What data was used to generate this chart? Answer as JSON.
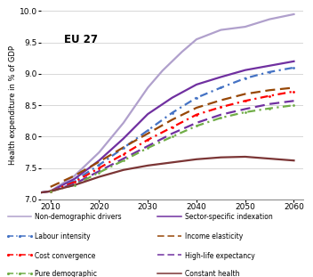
{
  "title": "EU 27",
  "ylabel": "Health expenditure in % of GDP",
  "xlim": [
    2008,
    2062
  ],
  "ylim": [
    7.0,
    10.0
  ],
  "xticks": [
    2010,
    2020,
    2030,
    2040,
    2050,
    2060
  ],
  "yticks": [
    7.0,
    7.5,
    8.0,
    8.5,
    9.0,
    9.5,
    10.0
  ],
  "series": [
    {
      "name": "Non-demographic drivers",
      "x": [
        2008,
        2010,
        2015,
        2020,
        2025,
        2030,
        2033,
        2037,
        2040,
        2045,
        2050,
        2055,
        2060
      ],
      "y": [
        7.11,
        7.13,
        7.38,
        7.75,
        8.22,
        8.78,
        9.05,
        9.35,
        9.55,
        9.7,
        9.75,
        9.87,
        9.95
      ],
      "color": "#b0a0cc",
      "lw": 1.6,
      "ls": "solid",
      "dot": false
    },
    {
      "name": "Sector-specific indexation",
      "x": [
        2008,
        2010,
        2015,
        2020,
        2025,
        2030,
        2035,
        2040,
        2045,
        2050,
        2055,
        2060
      ],
      "y": [
        7.11,
        7.13,
        7.33,
        7.62,
        7.97,
        8.36,
        8.62,
        8.83,
        8.95,
        9.06,
        9.13,
        9.2
      ],
      "color": "#7030a0",
      "lw": 1.6,
      "ls": "solid",
      "dot": false
    },
    {
      "name": "Labour intensity",
      "x": [
        2010,
        2015,
        2020,
        2025,
        2030,
        2035,
        2040,
        2045,
        2050,
        2055,
        2060
      ],
      "y": [
        7.13,
        7.3,
        7.55,
        7.82,
        8.1,
        8.38,
        8.62,
        8.78,
        8.93,
        9.03,
        9.1
      ],
      "color": "#4472c4",
      "lw": 1.6,
      "ls": "dashdot",
      "dot": true
    },
    {
      "name": "Income elasticity",
      "x": [
        2010,
        2015,
        2020,
        2025,
        2030,
        2035,
        2040,
        2045,
        2050,
        2055,
        2060
      ],
      "y": [
        7.2,
        7.38,
        7.6,
        7.83,
        8.05,
        8.27,
        8.46,
        8.58,
        8.68,
        8.74,
        8.78
      ],
      "color": "#974706",
      "lw": 1.6,
      "ls": "dashed",
      "dot": false
    },
    {
      "name": "Cost convergence",
      "x": [
        2010,
        2015,
        2020,
        2025,
        2030,
        2035,
        2040,
        2045,
        2050,
        2055,
        2060
      ],
      "y": [
        7.13,
        7.28,
        7.5,
        7.72,
        7.95,
        8.15,
        8.35,
        8.47,
        8.57,
        8.65,
        8.72
      ],
      "color": "#ff0000",
      "lw": 1.6,
      "ls": "dashdot",
      "dot": true
    },
    {
      "name": "High-life expectancy",
      "x": [
        2010,
        2015,
        2020,
        2025,
        2030,
        2035,
        2040,
        2045,
        2050,
        2055,
        2060
      ],
      "y": [
        7.13,
        7.25,
        7.45,
        7.65,
        7.85,
        8.05,
        8.22,
        8.35,
        8.44,
        8.52,
        8.57
      ],
      "color": "#7030a0",
      "lw": 1.6,
      "ls": "dashed",
      "dot": false
    },
    {
      "name": "Pure demographic",
      "x": [
        2010,
        2015,
        2020,
        2025,
        2030,
        2035,
        2040,
        2045,
        2050,
        2055,
        2060
      ],
      "y": [
        7.13,
        7.23,
        7.43,
        7.62,
        7.82,
        8.0,
        8.17,
        8.3,
        8.39,
        8.45,
        8.5
      ],
      "color": "#70ad47",
      "lw": 1.6,
      "ls": "dashdot",
      "dot": true
    },
    {
      "name": "Constant health",
      "x": [
        2008,
        2010,
        2015,
        2020,
        2025,
        2030,
        2035,
        2040,
        2045,
        2050,
        2055,
        2060
      ],
      "y": [
        7.11,
        7.13,
        7.23,
        7.36,
        7.47,
        7.54,
        7.59,
        7.64,
        7.67,
        7.68,
        7.65,
        7.62
      ],
      "color": "#7b3535",
      "lw": 1.6,
      "ls": "solid",
      "dot": false
    }
  ],
  "legend_col1": [
    "Non-demographic drivers",
    "Labour intensity",
    "Cost convergence",
    "Pure demographic"
  ],
  "legend_col2": [
    "Sector-specific indexation",
    "Income elasticity",
    "High-life expectancy",
    "Constant health"
  ]
}
